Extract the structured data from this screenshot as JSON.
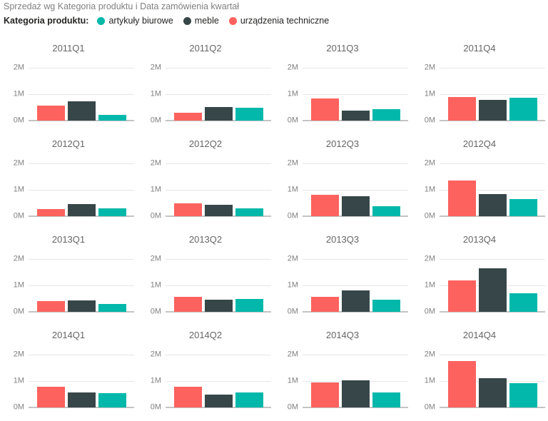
{
  "report": {
    "title": "Sprzedaż wg Kategoria produktu i Data zamówienia kwartał"
  },
  "legend": {
    "label": "Kategoria produktu:",
    "items": [
      {
        "label": "artykuły biurowe",
        "color": "#01B8AA"
      },
      {
        "label": "meble",
        "color": "#374649"
      },
      {
        "label": "urządzenia techniczne",
        "color": "#FD625E"
      }
    ]
  },
  "chart_data": {
    "type": "bar",
    "layout": "small-multiples-grid-4x4",
    "title": "Sprzedaż wg Kategoria produktu i Data zamówienia kwartał",
    "legend_title": "Kategoria produktu:",
    "legend_position": "top",
    "unit": "M (millions)",
    "ylim": [
      0,
      2
    ],
    "yticks": [
      "0M",
      "1M",
      "2M"
    ],
    "grid": true,
    "bar_order_in_plot": [
      "urządzenia techniczne",
      "meble",
      "artykuły biurowe"
    ],
    "categories": [
      "2011Q1",
      "2011Q2",
      "2011Q3",
      "2011Q4",
      "2012Q1",
      "2012Q2",
      "2012Q3",
      "2012Q4",
      "2013Q1",
      "2013Q2",
      "2013Q3",
      "2013Q4",
      "2014Q1",
      "2014Q2",
      "2014Q3",
      "2014Q4"
    ],
    "series": [
      {
        "name": "urządzenia techniczne",
        "color": "#FD625E",
        "values": [
          0.57,
          0.3,
          0.85,
          0.88,
          0.27,
          0.5,
          0.82,
          1.35,
          0.4,
          0.58,
          0.58,
          1.2,
          0.78,
          0.78,
          0.95,
          1.75
        ]
      },
      {
        "name": "meble",
        "color": "#374649",
        "values": [
          0.72,
          0.51,
          0.37,
          0.78,
          0.45,
          0.42,
          0.77,
          0.83,
          0.44,
          0.46,
          0.8,
          1.65,
          0.58,
          0.48,
          1.02,
          1.1
        ]
      },
      {
        "name": "artykuły biurowe",
        "color": "#01B8AA",
        "values": [
          0.23,
          0.49,
          0.43,
          0.86,
          0.29,
          0.3,
          0.38,
          0.65,
          0.29,
          0.48,
          0.45,
          0.71,
          0.55,
          0.58,
          0.58,
          0.93
        ]
      }
    ]
  }
}
